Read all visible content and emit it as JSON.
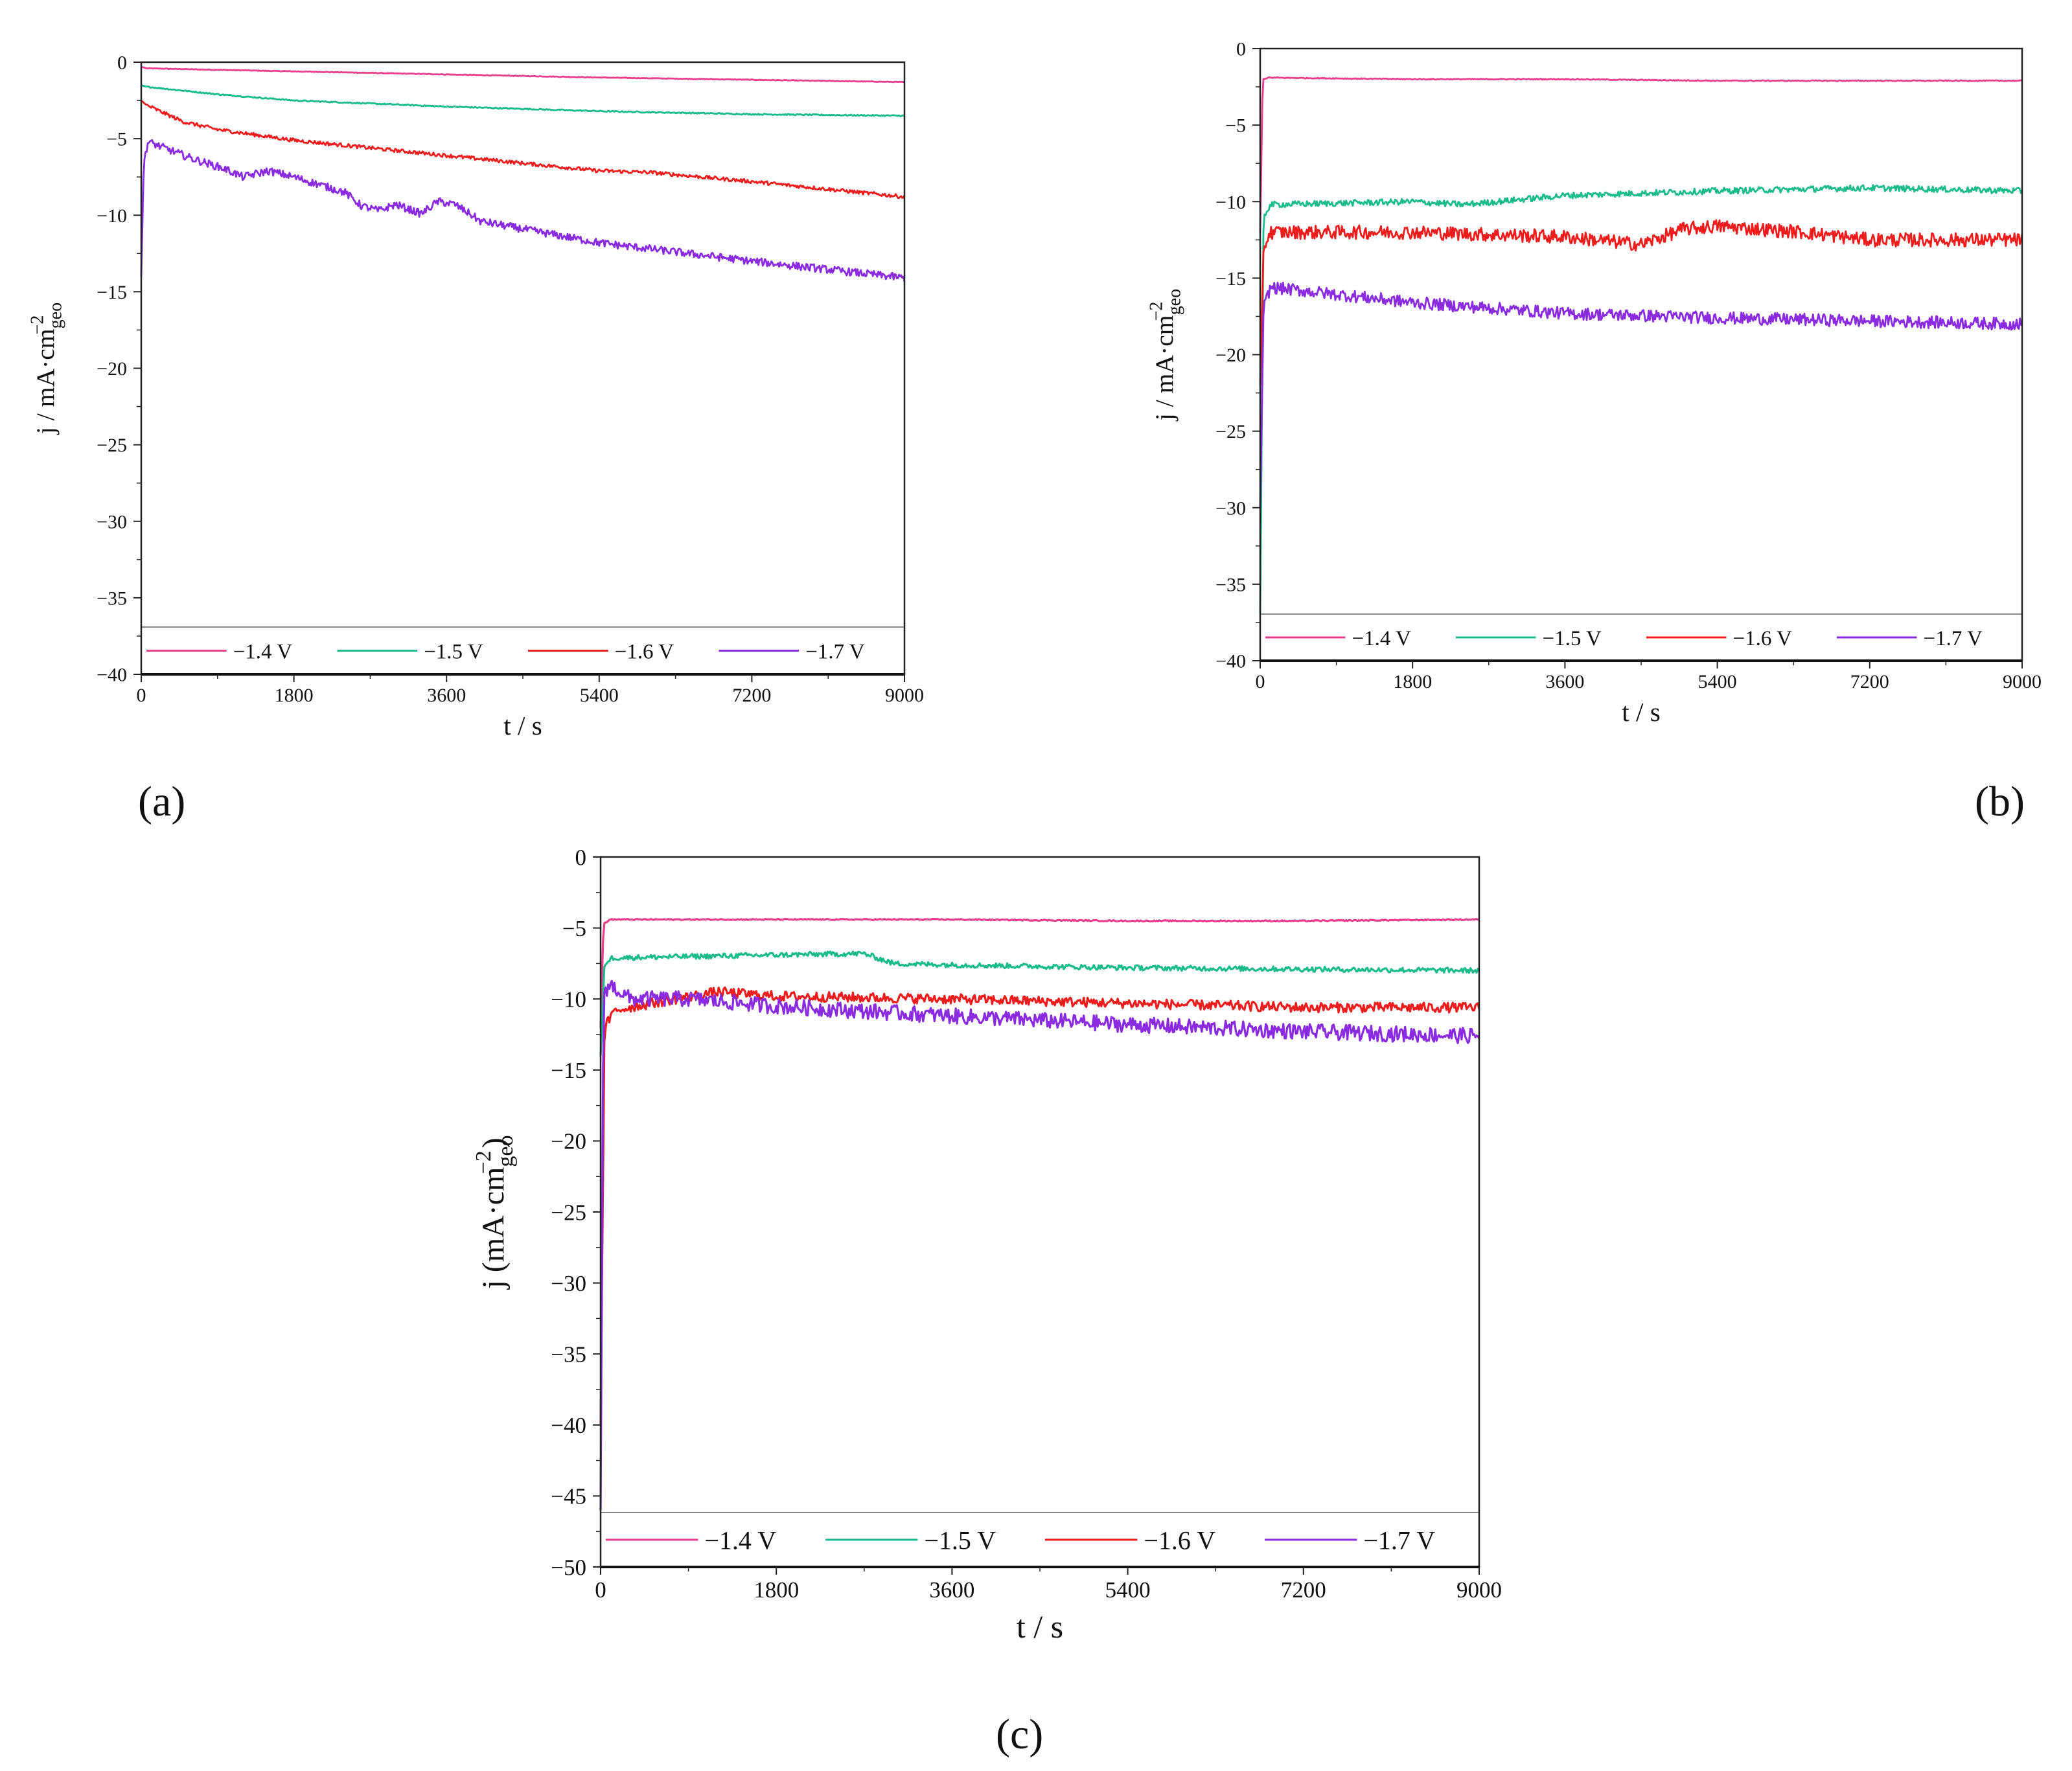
{
  "figure_labels": [
    "(a)",
    "(b)",
    "(c)"
  ],
  "chart_data": [
    {
      "type": "line",
      "panel": "(a)",
      "xlabel": "t / s",
      "ylabel_main": "j / mA·cm",
      "ylabel_sub": "geo",
      "ylabel_sup": "−2",
      "xlim": [
        0,
        9000
      ],
      "ylim": [
        -40,
        0
      ],
      "xticks": [
        0,
        1800,
        3600,
        5400,
        7200,
        9000
      ],
      "yticks": [
        0,
        -5,
        -10,
        -15,
        -20,
        -25,
        -30,
        -35,
        -40
      ],
      "legend_position": "bottom",
      "series": [
        {
          "name": "−1.4 V",
          "color": "#e83e8c",
          "noise": 0.02,
          "x": [
            0,
            60,
            900,
            1800,
            3600,
            5400,
            7200,
            9000
          ],
          "values": [
            -0.3,
            -0.4,
            -0.5,
            -0.6,
            -0.8,
            -1.0,
            -1.15,
            -1.3
          ]
        },
        {
          "name": "−1.5 V",
          "color": "#1abc8c",
          "noise": 0.04,
          "x": [
            0,
            60,
            900,
            1800,
            3600,
            5400,
            7200,
            9000
          ],
          "values": [
            -1.5,
            -1.6,
            -2.1,
            -2.5,
            -2.9,
            -3.2,
            -3.4,
            -3.5
          ]
        },
        {
          "name": "−1.6 V",
          "color": "#ee1c1c",
          "noise": 0.12,
          "x": [
            0,
            60,
            500,
            900,
            1800,
            3600,
            5400,
            6000,
            7200,
            9000
          ],
          "values": [
            -2.5,
            -2.8,
            -3.9,
            -4.4,
            -5.1,
            -6.1,
            -7.1,
            -7.2,
            -7.8,
            -8.8
          ]
        },
        {
          "name": "−1.7 V",
          "color": "#8a2be2",
          "noise": 0.25,
          "x": [
            0,
            30,
            80,
            600,
            1000,
            1200,
            1500,
            1800,
            2100,
            2400,
            2600,
            2800,
            3000,
            3300,
            3500,
            3700,
            3900,
            4000,
            5400,
            7200,
            9000
          ],
          "values": [
            -14,
            -6.5,
            -5.2,
            -6.3,
            -7.0,
            -7.5,
            -7.1,
            -7.5,
            -8.0,
            -8.5,
            -9.4,
            -9.7,
            -9.3,
            -9.9,
            -9.1,
            -9.3,
            -10.0,
            -10.4,
            -11.8,
            -13.0,
            -14.1
          ]
        }
      ]
    },
    {
      "type": "line",
      "panel": "(b)",
      "xlabel": "t / s",
      "ylabel_main": "j / mA·cm",
      "ylabel_sub": "geo",
      "ylabel_sup": "−2",
      "xlim": [
        0,
        9000
      ],
      "ylim": [
        -40,
        0
      ],
      "xticks": [
        0,
        1800,
        3600,
        5400,
        7200,
        9000
      ],
      "yticks": [
        0,
        -5,
        -10,
        -15,
        -20,
        -25,
        -30,
        -35,
        -40
      ],
      "legend_position": "bottom",
      "series": [
        {
          "name": "−1.4 V",
          "color": "#e83e8c",
          "noise": 0.03,
          "x": [
            0,
            30,
            100,
            1800,
            3600,
            5400,
            7200,
            9000
          ],
          "values": [
            -12,
            -2.0,
            -1.9,
            -2.0,
            -2.0,
            -2.1,
            -2.1,
            -2.1
          ]
        },
        {
          "name": "−1.5 V",
          "color": "#1abc8c",
          "noise": 0.2,
          "x": [
            0,
            40,
            120,
            1800,
            2400,
            3600,
            5400,
            7200,
            9000
          ],
          "values": [
            -37,
            -11,
            -10.2,
            -10.0,
            -10.2,
            -9.6,
            -9.3,
            -9.1,
            -9.3
          ]
        },
        {
          "name": "−1.6 V",
          "color": "#ee1c1c",
          "noise": 0.45,
          "x": [
            0,
            40,
            120,
            1800,
            3600,
            4500,
            5000,
            5400,
            6400,
            7200,
            9000
          ],
          "values": [
            -22,
            -13,
            -12.0,
            -12.0,
            -12.3,
            -12.8,
            -11.8,
            -11.6,
            -12.0,
            -12.5,
            -12.5
          ]
        },
        {
          "name": "−1.7 V",
          "color": "#8a2be2",
          "noise": 0.4,
          "x": [
            0,
            40,
            120,
            1800,
            3600,
            5400,
            7200,
            9000
          ],
          "values": [
            -30,
            -17,
            -15.6,
            -16.6,
            -17.3,
            -17.6,
            -17.8,
            -18.0
          ]
        }
      ]
    },
    {
      "type": "line",
      "panel": "(c)",
      "xlabel": "t / s",
      "ylabel_main": "j (mA·cm",
      "ylabel_sub": "geo",
      "ylabel_sup": "−2",
      "ylabel_close": ")",
      "xlim": [
        0,
        9000
      ],
      "ylim": [
        -50,
        0
      ],
      "xticks": [
        0,
        1800,
        3600,
        5400,
        7200,
        9000
      ],
      "yticks": [
        0,
        -5,
        -10,
        -15,
        -20,
        -25,
        -30,
        -35,
        -40,
        -45,
        -50
      ],
      "legend_position": "bottom",
      "series": [
        {
          "name": "−1.4 V",
          "color": "#e83e8c",
          "noise": 0.04,
          "x": [
            0,
            30,
            100,
            1800,
            3600,
            5400,
            7200,
            9000
          ],
          "values": [
            -12,
            -4.7,
            -4.4,
            -4.4,
            -4.4,
            -4.5,
            -4.5,
            -4.4
          ]
        },
        {
          "name": "−1.5 V",
          "color": "#1abc8c",
          "noise": 0.18,
          "x": [
            0,
            40,
            120,
            1800,
            2700,
            3000,
            3600,
            5400,
            7200,
            9000
          ],
          "values": [
            -14,
            -7.5,
            -7.1,
            -6.9,
            -6.8,
            -7.5,
            -7.6,
            -7.8,
            -7.9,
            -8.0
          ]
        },
        {
          "name": "−1.6 V",
          "color": "#ee1c1c",
          "noise": 0.35,
          "x": [
            0,
            40,
            150,
            600,
            1200,
            1800,
            3600,
            5400,
            7200,
            9000
          ],
          "values": [
            -40,
            -12,
            -10.8,
            -10.2,
            -9.5,
            -9.8,
            -10.0,
            -10.3,
            -10.6,
            -10.6
          ]
        },
        {
          "name": "−1.7 V",
          "color": "#8a2be2",
          "noise": 0.55,
          "x": [
            0,
            30,
            100,
            300,
            900,
            1800,
            3600,
            5400,
            7200,
            9000
          ],
          "values": [
            -46,
            -9.5,
            -9.0,
            -10.0,
            -10.0,
            -10.5,
            -11.2,
            -11.8,
            -12.3,
            -12.6
          ]
        }
      ]
    }
  ]
}
